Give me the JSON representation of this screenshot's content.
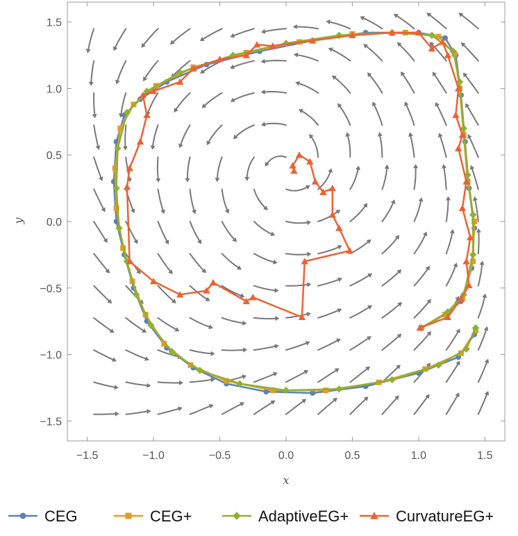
{
  "chart_data": {
    "type": "line",
    "title": "",
    "xlabel": "x",
    "ylabel": "y",
    "xlim": [
      -1.65,
      1.65
    ],
    "ylim": [
      -1.65,
      1.65
    ],
    "xticks": [
      -1.5,
      -1.0,
      -0.5,
      0.0,
      0.5,
      1.0,
      1.5
    ],
    "yticks": [
      -1.5,
      -1.0,
      -0.5,
      0.0,
      0.5,
      1.0,
      1.5
    ],
    "xtick_labels": [
      "−1.5",
      "−1.0",
      "−0.5",
      "0.0",
      "0.5",
      "1.0",
      "1.5"
    ],
    "ytick_labels": [
      "−1.5",
      "−1.0",
      "−0.5",
      "0.0",
      "0.5",
      "1.0",
      "1.5"
    ],
    "grid": false,
    "background": "vector field stream plot",
    "legend_position": "bottom",
    "series": [
      {
        "name": "CEG",
        "color": "#5E81B5",
        "marker": "circle",
        "points": [
          [
            1.02,
            -0.8
          ],
          [
            1.2,
            -0.7
          ],
          [
            1.32,
            -0.6
          ],
          [
            1.4,
            -0.35
          ],
          [
            1.42,
            -0.05
          ],
          [
            1.38,
            0.25
          ],
          [
            1.35,
            0.6
          ],
          [
            1.32,
            0.95
          ],
          [
            1.28,
            1.25
          ],
          [
            1.2,
            1.38
          ],
          [
            1.0,
            1.42
          ],
          [
            0.6,
            1.42
          ],
          [
            0.2,
            1.36
          ],
          [
            -0.2,
            1.28
          ],
          [
            -0.6,
            1.18
          ],
          [
            -0.9,
            1.05
          ],
          [
            -1.1,
            0.92
          ],
          [
            -1.22,
            0.8
          ],
          [
            -1.28,
            0.6
          ],
          [
            -1.3,
            0.3
          ],
          [
            -1.28,
            0.0
          ],
          [
            -1.22,
            -0.25
          ],
          [
            -1.15,
            -0.5
          ],
          [
            -1.05,
            -0.75
          ],
          [
            -0.9,
            -0.95
          ],
          [
            -0.7,
            -1.1
          ],
          [
            -0.45,
            -1.22
          ],
          [
            -0.15,
            -1.28
          ],
          [
            0.2,
            -1.29
          ],
          [
            0.6,
            -1.24
          ],
          [
            1.0,
            -1.14
          ],
          [
            1.3,
            -1.02
          ],
          [
            1.42,
            -0.85
          ]
        ]
      },
      {
        "name": "CEG+",
        "color": "#E19C24",
        "marker": "square",
        "points": [
          [
            1.02,
            -0.8
          ],
          [
            1.2,
            -0.7
          ],
          [
            1.33,
            -0.58
          ],
          [
            1.41,
            -0.3
          ],
          [
            1.42,
            0.0
          ],
          [
            1.37,
            0.3
          ],
          [
            1.34,
            0.65
          ],
          [
            1.31,
            1.0
          ],
          [
            1.27,
            1.26
          ],
          [
            1.15,
            1.39
          ],
          [
            0.9,
            1.42
          ],
          [
            0.5,
            1.41
          ],
          [
            0.1,
            1.35
          ],
          [
            -0.3,
            1.27
          ],
          [
            -0.7,
            1.16
          ],
          [
            -0.98,
            1.02
          ],
          [
            -1.15,
            0.88
          ],
          [
            -1.25,
            0.7
          ],
          [
            -1.29,
            0.4
          ],
          [
            -1.28,
            0.1
          ],
          [
            -1.23,
            -0.2
          ],
          [
            -1.16,
            -0.45
          ],
          [
            -1.06,
            -0.7
          ],
          [
            -0.92,
            -0.92
          ],
          [
            -0.72,
            -1.08
          ],
          [
            -0.45,
            -1.2
          ],
          [
            -0.1,
            -1.27
          ],
          [
            0.3,
            -1.27
          ],
          [
            0.7,
            -1.21
          ],
          [
            1.05,
            -1.11
          ],
          [
            1.32,
            -0.99
          ],
          [
            1.43,
            -0.82
          ]
        ]
      },
      {
        "name": "AdaptiveEG+",
        "color": "#8FB032",
        "marker": "diamond",
        "points": [
          [
            1.02,
            -0.8
          ],
          [
            1.22,
            -0.68
          ],
          [
            1.34,
            -0.55
          ],
          [
            1.41,
            -0.25
          ],
          [
            1.41,
            0.05
          ],
          [
            1.37,
            0.35
          ],
          [
            1.34,
            0.7
          ],
          [
            1.31,
            1.05
          ],
          [
            1.26,
            1.28
          ],
          [
            1.1,
            1.4
          ],
          [
            0.8,
            1.42
          ],
          [
            0.4,
            1.4
          ],
          [
            0.0,
            1.34
          ],
          [
            -0.4,
            1.25
          ],
          [
            -0.8,
            1.12
          ],
          [
            -1.05,
            0.98
          ],
          [
            -1.2,
            0.82
          ],
          [
            -1.27,
            0.55
          ],
          [
            -1.28,
            0.25
          ],
          [
            -1.26,
            -0.05
          ],
          [
            -1.2,
            -0.3
          ],
          [
            -1.13,
            -0.55
          ],
          [
            -1.02,
            -0.78
          ],
          [
            -0.86,
            -0.98
          ],
          [
            -0.65,
            -1.12
          ],
          [
            -0.35,
            -1.22
          ],
          [
            0.0,
            -1.27
          ],
          [
            0.4,
            -1.26
          ],
          [
            0.8,
            -1.19
          ],
          [
            1.15,
            -1.08
          ],
          [
            1.36,
            -0.96
          ],
          [
            1.43,
            -0.8
          ]
        ]
      },
      {
        "name": "CurvatureEG+",
        "color": "#EB6235",
        "marker": "triangle",
        "points": [
          [
            1.01,
            -0.8
          ],
          [
            1.22,
            -0.72
          ],
          [
            1.32,
            -0.58
          ],
          [
            1.38,
            -0.48
          ],
          [
            1.36,
            -0.3
          ],
          [
            1.39,
            -0.12
          ],
          [
            1.33,
            0.1
          ],
          [
            1.36,
            0.3
          ],
          [
            1.3,
            0.55
          ],
          [
            1.33,
            0.65
          ],
          [
            1.28,
            0.8
          ],
          [
            1.3,
            1.0
          ],
          [
            1.22,
            1.25
          ],
          [
            1.18,
            1.35
          ],
          [
            1.1,
            1.3
          ],
          [
            1.0,
            1.42
          ],
          [
            0.8,
            1.42
          ],
          [
            0.5,
            1.4
          ],
          [
            0.2,
            1.36
          ],
          [
            -0.1,
            1.32
          ],
          [
            -0.22,
            1.33
          ],
          [
            -0.3,
            1.25
          ],
          [
            -0.5,
            1.22
          ],
          [
            -0.7,
            1.15
          ],
          [
            -0.8,
            1.05
          ],
          [
            -1.0,
            0.98
          ],
          [
            -1.08,
            0.95
          ],
          [
            -1.05,
            0.8
          ],
          [
            -1.1,
            0.6
          ],
          [
            -1.18,
            0.4
          ],
          [
            -1.2,
            0.26
          ],
          [
            -1.18,
            -0.3
          ],
          [
            -1.0,
            -0.45
          ],
          [
            -0.8,
            -0.55
          ],
          [
            -0.6,
            -0.52
          ],
          [
            -0.55,
            -0.46
          ],
          [
            -0.3,
            -0.6
          ],
          [
            -0.25,
            -0.57
          ],
          [
            0.12,
            -0.72
          ],
          [
            0.14,
            -0.3
          ],
          [
            0.48,
            -0.22
          ],
          [
            0.4,
            -0.05
          ],
          [
            0.35,
            0.05
          ],
          [
            0.35,
            0.25
          ],
          [
            0.28,
            0.22
          ],
          [
            0.22,
            0.3
          ],
          [
            0.18,
            0.45
          ],
          [
            0.1,
            0.5
          ],
          [
            0.05,
            0.42
          ],
          [
            0.06,
            0.38
          ]
        ]
      }
    ]
  },
  "legend": {
    "items": [
      "CEG",
      "CEG+",
      "AdaptiveEG+",
      "CurvatureEG+"
    ]
  }
}
